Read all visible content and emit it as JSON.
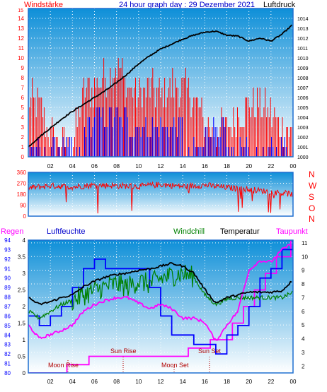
{
  "colors": {
    "bg_top": "#0e8fd8",
    "bg_bottom": "#ffffff",
    "border": "#1e6fd0",
    "wind_gust": "#ff0000",
    "wind_avg": "#0000ff",
    "pressure": "#000000",
    "humidity": "#0000ff",
    "windchill": "#008000",
    "temperature": "#000000",
    "dewpoint": "#ff00ff",
    "rain": "#ff00ff",
    "grid": "#ffffff",
    "axis_red": "#ff0000",
    "axis_blue": "#0000ff",
    "axis_black": "#000000",
    "moon_sun": "#b00000"
  },
  "header": {
    "wind_label": "Windstärke",
    "title": "24 hour graph day : 29 Dezember 2021",
    "pressure_label": "Luftdruck"
  },
  "direction_labels": [
    "N",
    "W",
    "S",
    "O",
    "N"
  ],
  "legend": {
    "rain": "Regen",
    "humidity": "Luftfeuchte",
    "windchill": "Windchill",
    "temperature": "Temperatur",
    "dewpoint": "Taupunkt"
  },
  "annotations": {
    "moon_rise": "Moon Rise",
    "sun_rise": "Sun Rise",
    "moon_set": "Moon Set",
    "sun_set": "Sun Set"
  },
  "chart_data": [
    {
      "type": "line",
      "name": "wind_and_pressure",
      "x_ticks": [
        "02",
        "04",
        "06",
        "08",
        "10",
        "12",
        "14",
        "16",
        "18",
        "20",
        "22",
        "00"
      ],
      "x_range_hours": [
        0,
        24
      ],
      "wind_ticks": [
        0,
        1,
        2,
        3,
        4,
        5,
        6,
        7,
        8,
        9,
        10,
        11,
        12,
        13,
        14
      ],
      "wind_top_label": "15",
      "wind_range": [
        0,
        15
      ],
      "pressure_ticks": [
        1000,
        1001,
        1002,
        1003,
        1004,
        1005,
        1006,
        1007,
        1008,
        1009,
        1010,
        1011,
        1012,
        1013,
        1014
      ],
      "pressure_range": [
        1000,
        1015
      ],
      "pressure": {
        "x": [
          0,
          1,
          2,
          3,
          4,
          5,
          6,
          7,
          8,
          9,
          10,
          11,
          12,
          13,
          14,
          15,
          16,
          17,
          18,
          19,
          20,
          21,
          22,
          23,
          24
        ],
        "y": [
          1001.0,
          1002.0,
          1002.9,
          1003.8,
          1004.6,
          1005.3,
          1006.0,
          1006.7,
          1007.5,
          1008.4,
          1009.4,
          1010.2,
          1010.9,
          1011.4,
          1011.9,
          1012.3,
          1012.6,
          1012.7,
          1012.3,
          1012.2,
          1011.7,
          1012.0,
          1011.7,
          1012.4,
          1013.4
        ]
      },
      "wind_avg_levels": {
        "x": [
          0,
          1,
          2,
          4,
          5,
          6,
          9,
          12,
          14,
          15,
          16,
          18,
          19,
          20,
          22,
          23,
          24
        ],
        "y": [
          1,
          0,
          1,
          0,
          3,
          4,
          3,
          3,
          0,
          1,
          3,
          0,
          1,
          0,
          1,
          1,
          0
        ]
      },
      "wind_gust_levels": {
        "x": [
          0,
          1,
          2,
          3,
          4,
          5,
          6,
          7,
          8,
          9,
          10,
          11,
          12,
          13,
          14,
          15,
          16,
          17,
          18,
          19,
          20,
          21,
          22,
          23,
          24
        ],
        "y": [
          6,
          5,
          2,
          1,
          1,
          6,
          7,
          8,
          9,
          7,
          6,
          7,
          6,
          7,
          7,
          6,
          3,
          2,
          3,
          4,
          5,
          5,
          4,
          3,
          2
        ]
      }
    },
    {
      "type": "scatter",
      "name": "wind_direction",
      "y_ticks": [
        0,
        90,
        180,
        270,
        360
      ],
      "y_range": [
        0,
        360
      ],
      "x": [
        0,
        2,
        4,
        6,
        8,
        10,
        12,
        14,
        16,
        18,
        20,
        22,
        24
      ],
      "y": [
        230,
        250,
        240,
        255,
        250,
        245,
        260,
        245,
        255,
        235,
        220,
        200,
        180
      ]
    },
    {
      "type": "line",
      "name": "temperature_humidity",
      "left_rain_ticks": [
        "0",
        "0.5",
        "1",
        "1.5",
        "2",
        "2.5",
        "3",
        "3.5",
        "4"
      ],
      "left_humidity_ticks": [
        80,
        81,
        82,
        83,
        84,
        85,
        86,
        87,
        88,
        89,
        90,
        91,
        92,
        93,
        94
      ],
      "right_temp_ticks": [
        2,
        3,
        4,
        5,
        6,
        7,
        8,
        9,
        10,
        11
      ],
      "temp_range": [
        1.5,
        11.2
      ],
      "humidity_range": [
        80,
        94
      ],
      "temperature": {
        "x": [
          0,
          1,
          2,
          3,
          4,
          5,
          6,
          7,
          8,
          9,
          10,
          11,
          12,
          13,
          14,
          15,
          16,
          17,
          18,
          19,
          20,
          21,
          22,
          23,
          24
        ],
        "y": [
          7.0,
          6.5,
          6.7,
          7.0,
          7.2,
          7.8,
          8.2,
          8.5,
          8.7,
          8.8,
          9.0,
          9.1,
          9.3,
          9.5,
          9.3,
          8.8,
          7.6,
          6.6,
          7.0,
          7.2,
          7.4,
          7.4,
          7.4,
          7.5,
          8.3
        ]
      },
      "windchill": {
        "x": [
          0,
          1,
          2,
          3,
          4,
          5,
          6,
          7,
          8,
          9,
          10,
          11,
          12,
          13,
          14,
          15,
          16,
          17,
          18,
          19,
          20,
          21,
          22,
          23,
          24
        ],
        "y": [
          6.0,
          5.5,
          6.0,
          6.5,
          6.8,
          7.2,
          7.5,
          7.8,
          8.0,
          7.8,
          8.2,
          8.0,
          8.4,
          8.6,
          8.8,
          8.5,
          7.2,
          6.5,
          6.9,
          7.0,
          7.0,
          7.0,
          7.0,
          7.0,
          7.4
        ]
      },
      "dewpoint": {
        "x": [
          0,
          1,
          2,
          3,
          4,
          5,
          6,
          7,
          8,
          9,
          10,
          11,
          12,
          13,
          14,
          15,
          16,
          17,
          18,
          19,
          20,
          21,
          22,
          23,
          24
        ],
        "y": [
          5.0,
          4.0,
          4.3,
          4.6,
          5.0,
          6.0,
          6.5,
          6.8,
          7.0,
          7.0,
          6.6,
          6.2,
          6.5,
          6.2,
          5.5,
          5.5,
          5.2,
          3.8,
          5.0,
          6.0,
          9.0,
          9.7,
          9.6,
          10.5,
          11.0
        ]
      },
      "humidity": {
        "x": [
          0,
          1,
          2,
          3,
          4,
          5,
          6,
          7,
          8,
          9,
          10,
          11,
          12,
          13,
          14,
          15,
          16,
          17,
          18,
          19,
          20,
          21,
          22,
          23,
          24
        ],
        "y": [
          86,
          85,
          86,
          87,
          89,
          91,
          92,
          91,
          91,
          91,
          91,
          89,
          86,
          84,
          84,
          83,
          83,
          82,
          84,
          85,
          87,
          90,
          91,
          93,
          94
        ]
      },
      "rain": {
        "x": [
          0,
          3,
          3.5,
          5,
          5.5,
          14.3,
          14.5,
          16.3,
          16.5,
          18.5,
          19.5,
          20.5,
          21.5,
          22.5,
          23.8
        ],
        "y": [
          0,
          0,
          0.25,
          0.25,
          0.5,
          0.5,
          0.75,
          0.75,
          1.0,
          1.5,
          2.0,
          2.5,
          3.0,
          3.5,
          4.0
        ]
      }
    }
  ]
}
